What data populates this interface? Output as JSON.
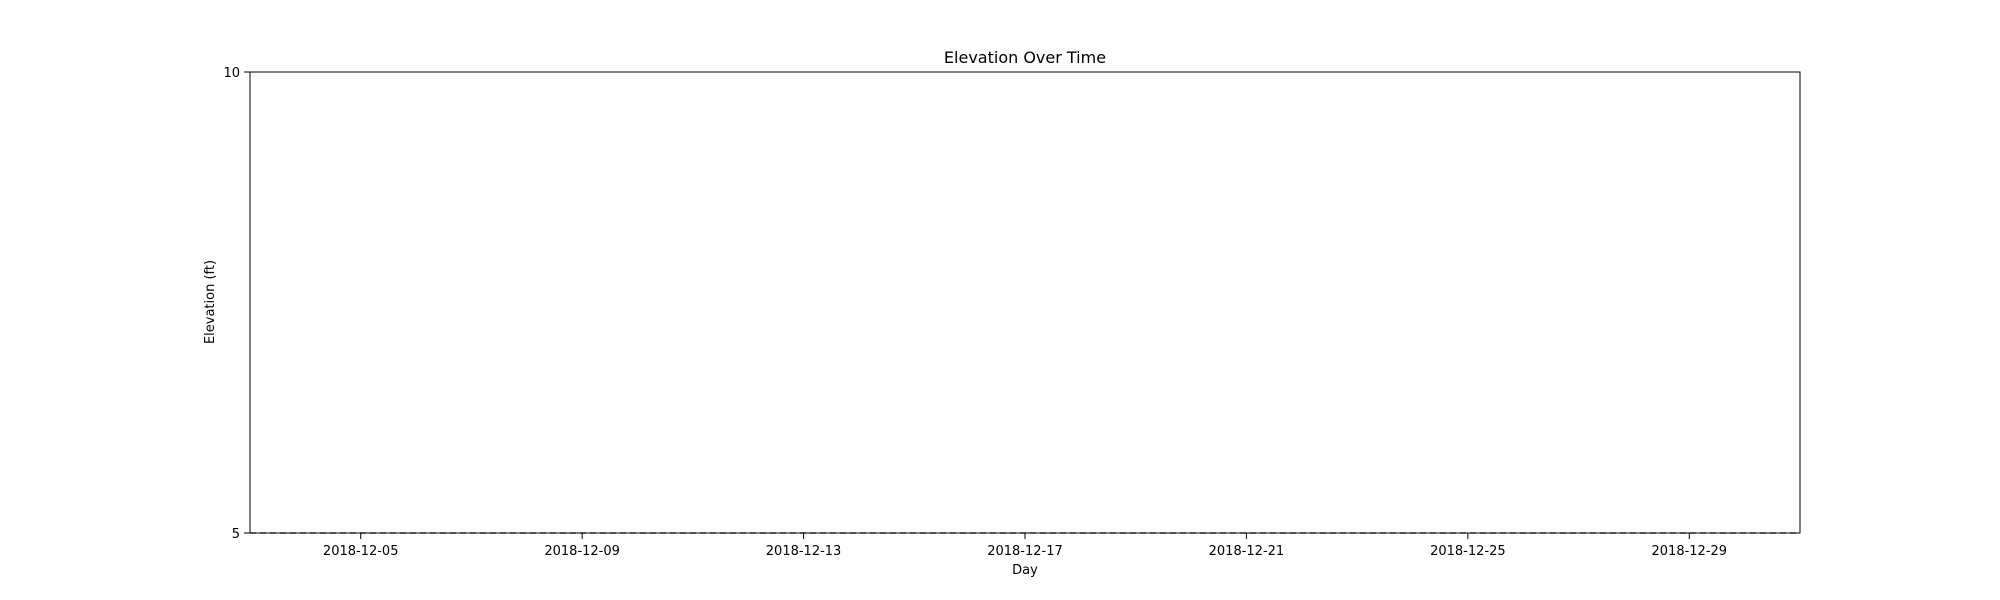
{
  "chart_data": {
    "type": "line",
    "title": "Elevation Over Time",
    "xlabel": "Day",
    "ylabel": "Elevation (ft)",
    "xlim": [
      "2018-12-03",
      "2018-12-31"
    ],
    "ylim": [
      5,
      10
    ],
    "x_ticks": [
      "2018-12-05",
      "2018-12-09",
      "2018-12-13",
      "2018-12-17",
      "2018-12-21",
      "2018-12-25",
      "2018-12-29"
    ],
    "y_ticks": [
      5,
      10
    ],
    "grid": false,
    "series": [
      {
        "line_style": "dashed",
        "color": "#555555",
        "x": [
          "2018-12-03",
          "2018-12-31"
        ],
        "y": [
          5,
          5
        ]
      }
    ]
  }
}
